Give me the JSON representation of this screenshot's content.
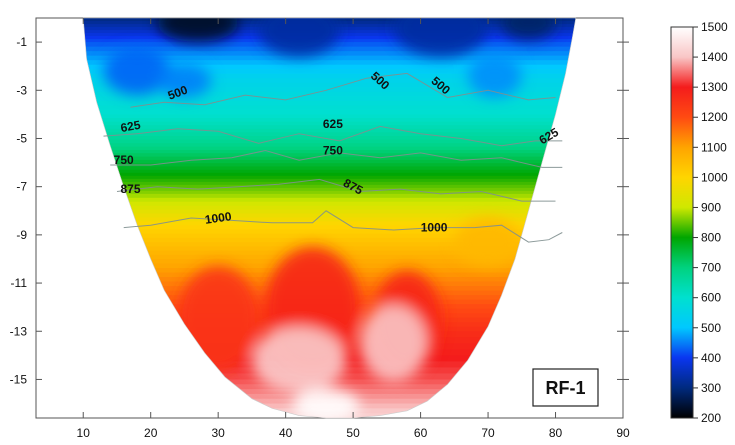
{
  "chart_data": {
    "type": "heatmap",
    "title": "",
    "xlabel": "",
    "ylabel": "",
    "badge": "RF-1",
    "x_ticks": [
      "10",
      "20",
      "30",
      "40",
      "50",
      "60",
      "70",
      "80",
      "90"
    ],
    "x_tick_values": [
      10,
      20,
      30,
      40,
      50,
      60,
      70,
      80,
      90
    ],
    "y_ticks": [
      "-1",
      "-3",
      "-5",
      "-7",
      "-9",
      "-11",
      "-13",
      "-15"
    ],
    "y_tick_values": [
      -1,
      -3,
      -5,
      -7,
      -9,
      -11,
      -13,
      -15
    ],
    "xlim": [
      3,
      90
    ],
    "ylim": [
      -16.6,
      0
    ],
    "section_outline": {
      "x": [
        10,
        10.5,
        12,
        14,
        16,
        18,
        20,
        22,
        25,
        28,
        31,
        35,
        38,
        42,
        46,
        50,
        54,
        58,
        61,
        64,
        67,
        70,
        72,
        74,
        76,
        78,
        80,
        81.5,
        82.5,
        83
      ],
      "y": [
        0,
        -1.7,
        -3.5,
        -5.3,
        -7,
        -8.6,
        -10,
        -11.3,
        -12.7,
        -13.9,
        -14.9,
        -15.8,
        -16.2,
        -16.5,
        -16.6,
        -16.6,
        -16.5,
        -16.3,
        -15.9,
        -15.2,
        -14.2,
        -12.8,
        -11.5,
        -10,
        -8,
        -6,
        -4,
        -2.3,
        -0.8,
        0
      ]
    },
    "colorbar": {
      "label": "",
      "range": [
        200,
        1500
      ],
      "ticks": [
        "200",
        "300",
        "400",
        "500",
        "600",
        "700",
        "800",
        "900",
        "1000",
        "1100",
        "1200",
        "1300",
        "1400",
        "1500"
      ],
      "tick_values": [
        200,
        300,
        400,
        500,
        600,
        700,
        800,
        900,
        1000,
        1100,
        1200,
        1300,
        1400,
        1500
      ],
      "stops": [
        {
          "value": 200,
          "color": "#000000"
        },
        {
          "value": 300,
          "color": "#002a7e"
        },
        {
          "value": 400,
          "color": "#0a36f0"
        },
        {
          "value": 500,
          "color": "#00c8ff"
        },
        {
          "value": 600,
          "color": "#00e0cf"
        },
        {
          "value": 700,
          "color": "#00d27f"
        },
        {
          "value": 800,
          "color": "#00a600"
        },
        {
          "value": 900,
          "color": "#cfe800"
        },
        {
          "value": 1000,
          "color": "#ffd500"
        },
        {
          "value": 1100,
          "color": "#ffa400"
        },
        {
          "value": 1200,
          "color": "#ff4a12"
        },
        {
          "value": 1300,
          "color": "#f41c1c"
        },
        {
          "value": 1400,
          "color": "#f9c6c6"
        },
        {
          "value": 1500,
          "color": "#ffffff"
        }
      ]
    },
    "velocity_profile": [
      {
        "depth": 0,
        "value": 300
      },
      {
        "depth": -1,
        "value": 420
      },
      {
        "depth": -2.5,
        "value": 540
      },
      {
        "depth": -4,
        "value": 600
      },
      {
        "depth": -5.2,
        "value": 680
      },
      {
        "depth": -6.3,
        "value": 780
      },
      {
        "depth": -7.3,
        "value": 870
      },
      {
        "depth": -8.6,
        "value": 1000
      },
      {
        "depth": -10,
        "value": 1080
      },
      {
        "depth": -11.5,
        "value": 1170
      },
      {
        "depth": -13,
        "value": 1260
      },
      {
        "depth": -15,
        "value": 1330
      },
      {
        "depth": -16.6,
        "value": 1420
      }
    ],
    "contours": [
      {
        "level": 500,
        "label": "500",
        "x": [
          17,
          22,
          28,
          34,
          40,
          46,
          52,
          58,
          64,
          70,
          76,
          80
        ],
        "y": [
          -3.7,
          -3.5,
          -3.6,
          -3.2,
          -3.4,
          -3.0,
          -2.5,
          -2.3,
          -3.3,
          -3.0,
          -3.4,
          -3.3
        ],
        "label_positions": [
          {
            "x": 24,
            "y": -3.1,
            "angle": -20
          },
          {
            "x": 54,
            "y": -2.6,
            "angle": 42
          },
          {
            "x": 63,
            "y": -2.8,
            "angle": 40
          }
        ]
      },
      {
        "level": 625,
        "label": "625",
        "x": [
          13,
          18,
          24,
          30,
          36,
          42,
          48,
          54,
          60,
          66,
          72,
          77,
          81
        ],
        "y": [
          -4.9,
          -4.8,
          -4.6,
          -4.7,
          -5.2,
          -4.8,
          -5.1,
          -4.5,
          -4.8,
          -5.0,
          -5.3,
          -5.1,
          -5.1
        ],
        "label_positions": [
          {
            "x": 17,
            "y": -4.5,
            "angle": -10
          },
          {
            "x": 47,
            "y": -4.4,
            "angle": 0
          },
          {
            "x": 79,
            "y": -4.9,
            "angle": -30
          }
        ]
      },
      {
        "level": 750,
        "label": "750",
        "x": [
          14,
          20,
          26,
          32,
          37,
          42,
          48,
          54,
          60,
          66,
          72,
          78,
          81
        ],
        "y": [
          -6.1,
          -6.1,
          -5.9,
          -5.8,
          -5.5,
          -5.9,
          -5.6,
          -5.8,
          -5.6,
          -5.9,
          -5.8,
          -6.2,
          -6.2
        ],
        "label_positions": [
          {
            "x": 16,
            "y": -5.9,
            "angle": 0
          },
          {
            "x": 47,
            "y": -5.5,
            "angle": 0
          }
        ]
      },
      {
        "level": 875,
        "label": "875",
        "x": [
          15,
          21,
          27,
          33,
          39,
          45,
          51,
          57,
          63,
          69,
          75,
          80
        ],
        "y": [
          -7.2,
          -7.0,
          -7.1,
          -7.0,
          -6.9,
          -6.7,
          -7.2,
          -7.1,
          -7.3,
          -7.2,
          -7.6,
          -7.6
        ],
        "label_positions": [
          {
            "x": 17,
            "y": -7.1,
            "angle": 0
          },
          {
            "x": 50,
            "y": -7.0,
            "angle": 28
          }
        ]
      },
      {
        "level": 1000,
        "label": "1000",
        "x": [
          16,
          20,
          26,
          32,
          38,
          44,
          46,
          50,
          56,
          62,
          68,
          72,
          76,
          79,
          81
        ],
        "y": [
          -8.7,
          -8.6,
          -8.3,
          -8.4,
          -8.5,
          -8.5,
          -8.0,
          -8.7,
          -8.8,
          -8.7,
          -8.7,
          -8.6,
          -9.3,
          -9.2,
          -8.9
        ],
        "label_positions": [
          {
            "x": 30,
            "y": -8.3,
            "angle": -8
          },
          {
            "x": 62,
            "y": -8.7,
            "angle": 0
          }
        ]
      }
    ],
    "anomalies": [
      {
        "x": 27,
        "y": -0.2,
        "r": 6,
        "ry": 0.8,
        "value": 230
      },
      {
        "x": 42,
        "y": -0.5,
        "r": 6,
        "ry": 1.1,
        "value": 330
      },
      {
        "x": 63,
        "y": -0.4,
        "r": 7,
        "ry": 1.2,
        "value": 330
      },
      {
        "x": 76,
        "y": -0.2,
        "r": 4,
        "ry": 0.7,
        "value": 280
      },
      {
        "x": 18,
        "y": -2.2,
        "r": 5,
        "ry": 1.0,
        "value": 430
      },
      {
        "x": 25,
        "y": -2.6,
        "r": 4,
        "ry": 0.7,
        "value": 450
      },
      {
        "x": 71,
        "y": -2.4,
        "r": 4,
        "ry": 0.9,
        "value": 460
      },
      {
        "x": 30,
        "y": -12.5,
        "r": 6,
        "ry": 2.2,
        "value": 1250
      },
      {
        "x": 44,
        "y": -12.0,
        "r": 7,
        "ry": 2.5,
        "value": 1280
      },
      {
        "x": 58,
        "y": -12.5,
        "r": 5,
        "ry": 2.0,
        "value": 1280
      },
      {
        "x": 42,
        "y": -14.2,
        "r": 7,
        "ry": 1.4,
        "value": 1410
      },
      {
        "x": 56,
        "y": -13.5,
        "r": 5,
        "ry": 1.6,
        "value": 1400
      },
      {
        "x": 46,
        "y": -16.1,
        "r": 5,
        "ry": 0.7,
        "value": 1500
      },
      {
        "x": 70,
        "y": -9.3,
        "r": 5,
        "ry": 1.0,
        "value": 1060
      }
    ]
  }
}
